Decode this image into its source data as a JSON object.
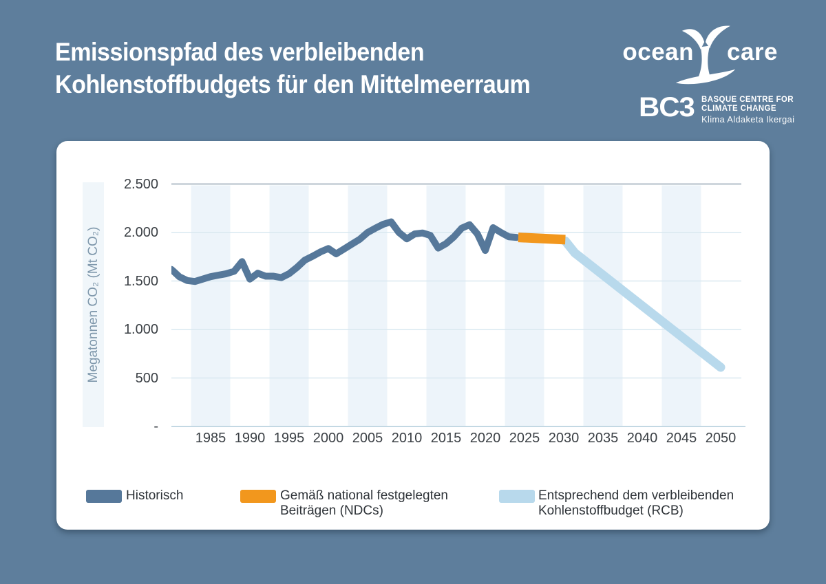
{
  "page": {
    "background": "#5e7e9c",
    "card_color": "#ffffff"
  },
  "header": {
    "title_line1": "Emissionspfad des verbleibenden",
    "title_line2": "Kohlenstoffbudgets für den Mittelmeerraum",
    "logos": {
      "oceancare": {
        "word1": "ocean",
        "word2": "care"
      },
      "bc3": {
        "name": "BC3",
        "line1": "BASQUE CENTRE FOR",
        "line2": "CLIMATE CHANGE",
        "line3": "Klima Aldaketa Ikergai"
      }
    }
  },
  "chart": {
    "y_axis_title": "Megatonnen CO₂ (Mt CO₂)",
    "y_ticks": [
      "2.500",
      "2.000",
      "1.500",
      "1.000",
      "500",
      "-"
    ],
    "x_ticks": [
      "1985",
      "1990",
      "1995",
      "2000",
      "2005",
      "2010",
      "2015",
      "2020",
      "2025",
      "2030",
      "2035",
      "2040",
      "2045",
      "2050"
    ],
    "legend": [
      {
        "label_line1": "Historisch",
        "label_line2": "",
        "color": "#56789a"
      },
      {
        "label_line1": "Gemäß national festgelegten",
        "label_line2": "Beiträgen (NDCs)",
        "color": "#f2971d"
      },
      {
        "label_line1": "Entsprechend dem verbleibenden",
        "label_line2": "Kohlenstoffbudget (RCB)",
        "color": "#b8d9ec"
      }
    ]
  },
  "chart_data": {
    "type": "line",
    "title": "Emissionspfad des verbleibenden Kohlenstoffbudgets für den Mittelmeerraum",
    "xlabel": "",
    "ylabel": "Megatonnen CO₂ (Mt CO₂)",
    "ylim": [
      0,
      2500
    ],
    "xlim": [
      1980,
      2052.5
    ],
    "grid": "horizontal",
    "legend_position": "bottom",
    "gridline_values": [
      2500,
      2000,
      1500,
      1000,
      500,
      0
    ],
    "stripe_centers": [
      1985,
      1995,
      2005,
      2015,
      2025,
      2035,
      2045
    ],
    "stripe_color": "#edf4fa",
    "series": [
      {
        "name": "Historisch",
        "color": "#56789a",
        "width": 10,
        "points": [
          [
            1980,
            1620
          ],
          [
            1981,
            1545
          ],
          [
            1982,
            1505
          ],
          [
            1983,
            1495
          ],
          [
            1984,
            1520
          ],
          [
            1985,
            1545
          ],
          [
            1986,
            1560
          ],
          [
            1987,
            1575
          ],
          [
            1988,
            1600
          ],
          [
            1989,
            1700
          ],
          [
            1990,
            1520
          ],
          [
            1991,
            1580
          ],
          [
            1992,
            1550
          ],
          [
            1993,
            1550
          ],
          [
            1994,
            1535
          ],
          [
            1995,
            1575
          ],
          [
            1996,
            1640
          ],
          [
            1997,
            1715
          ],
          [
            1998,
            1755
          ],
          [
            1999,
            1800
          ],
          [
            2000,
            1835
          ],
          [
            2001,
            1780
          ],
          [
            2002,
            1830
          ],
          [
            2003,
            1880
          ],
          [
            2004,
            1930
          ],
          [
            2005,
            2000
          ],
          [
            2006,
            2045
          ],
          [
            2007,
            2085
          ],
          [
            2008,
            2110
          ],
          [
            2009,
            2000
          ],
          [
            2010,
            1935
          ],
          [
            2011,
            1985
          ],
          [
            2012,
            1995
          ],
          [
            2013,
            1970
          ],
          [
            2014,
            1840
          ],
          [
            2015,
            1885
          ],
          [
            2016,
            1955
          ],
          [
            2017,
            2045
          ],
          [
            2018,
            2080
          ],
          [
            2019,
            1985
          ],
          [
            2020,
            1815
          ],
          [
            2021,
            2050
          ],
          [
            2022,
            2000
          ],
          [
            2023,
            1955
          ],
          [
            2024,
            1950
          ]
        ]
      },
      {
        "name": "Gemäß national festgelegten Beiträgen (NDCs)",
        "color": "#f2971d",
        "width": 14,
        "points": [
          [
            2024.2,
            1950
          ],
          [
            2030.2,
            1926
          ]
        ]
      },
      {
        "name": "Entsprechend dem verbleibenden Kohlenstoffbudget (RCB)",
        "color": "#b8d9ec",
        "width": 13,
        "points": [
          [
            2030.2,
            1912
          ],
          [
            2031.4,
            1790
          ],
          [
            2050,
            610
          ]
        ]
      }
    ]
  }
}
